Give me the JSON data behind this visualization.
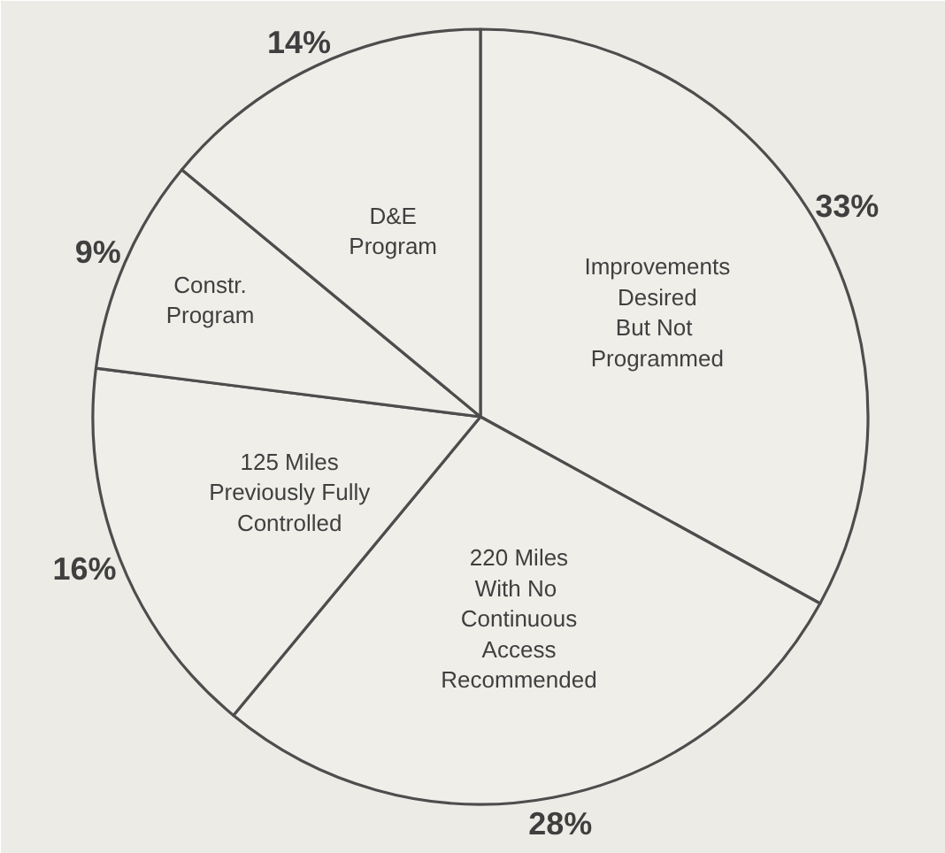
{
  "chart_data": {
    "type": "pie",
    "categories": [
      "Improvements\nDesired\nBut  Not\nProgrammed",
      "220 Miles\nWith  No\nContinuous\nAccess\nRecommended",
      "125 Miles\nPreviously Fully\nControlled",
      "Constr.\nProgram",
      "D&E\nProgram"
    ],
    "values": [
      33,
      28,
      16,
      9,
      14
    ],
    "colors": [
      "#efeee9",
      "#efeee9",
      "#efeee9",
      "#efeee9",
      "#efeee9"
    ],
    "value_labels": [
      "33%",
      "28%",
      "16%",
      "9%",
      "14%"
    ]
  }
}
